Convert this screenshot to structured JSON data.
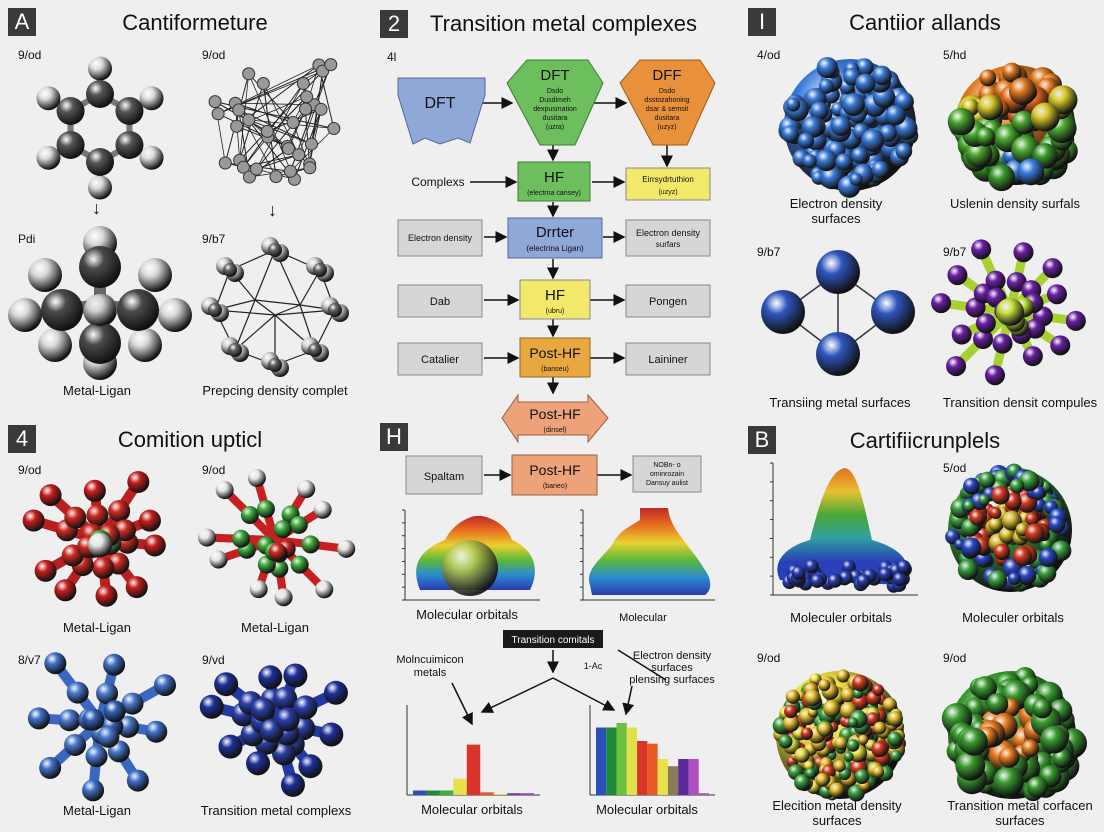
{
  "panel_a": {
    "badge": "A",
    "title": "Cantiformeture",
    "labels": [
      "9/od",
      "9/od",
      "Pdi",
      "9/b7"
    ],
    "captions": [
      "Metal-Ligan",
      "Prepcing density complet"
    ]
  },
  "panel_4": {
    "badge": "4",
    "title": "Comition upticl",
    "labels": [
      "9/od",
      "9/od",
      "8/v7",
      "9/vd"
    ],
    "captions": [
      "Metal-Ligan",
      "Metal-Ligan",
      "Metal-Ligan",
      "Transition metal complexs"
    ]
  },
  "panel_2": {
    "badge": "2",
    "title": "Transition metal complexes",
    "corner_label": "4l",
    "flow": {
      "dft_left": "DFT",
      "dft_green": {
        "title": "DFT",
        "lines": [
          "Dsdo",
          "Dusdimeh",
          "dexpusmation",
          "dusitara",
          "(uzra)"
        ]
      },
      "dff_orange": {
        "title": "DFF",
        "lines": [
          "Dsdo",
          "dsstozahoning",
          "dsar & semsit",
          "dusitara",
          "(uzyz)"
        ]
      },
      "complexs": "Complexs",
      "hf_green": {
        "title": "HF",
        "sub": "(electrna cansey)"
      },
      "yellow_box": {
        "title": "Eirrsydrtuthion",
        "sub": "(uzyz)"
      },
      "row3": {
        "left": "Electron density",
        "center_title": "Drrter",
        "center_sub": "(electrina Ligan)",
        "right": [
          "Electron density",
          "surfars"
        ]
      },
      "row4": {
        "left": "Dab",
        "center_title": "HF",
        "center_sub": "(ubru)",
        "right": "Pongen"
      },
      "row5": {
        "left": "Catalier",
        "center_title": "Post-HF",
        "center_sub": "(banseu)",
        "right": "Laininer"
      },
      "arrow_node": {
        "title": "Post-HF",
        "sub": "(dinsel)"
      }
    }
  },
  "panel_h": {
    "badge": "H",
    "row": {
      "left": "Spaltam",
      "center_title": "Post-HF",
      "center_sub": "(baneo)",
      "right": [
        "NOBn- o",
        "ominrozain",
        "Dansuy aulist"
      ]
    },
    "plot_captions": [
      "Molecular orbitals",
      "Molecular"
    ],
    "center_label": "Transition comitals",
    "annot_left": [
      "Molncuimicon",
      "metals"
    ],
    "annot_mid": "1-Ac",
    "annot_right": [
      "Electron density",
      "surfaces",
      "plensing surfaces"
    ],
    "bar_captions": [
      "Molecular orbitals",
      "Molecular orbitals"
    ]
  },
  "panel_i": {
    "badge": "I",
    "title": "Cantiior allands",
    "labels": [
      "4/od",
      "5/hd",
      "9/b7",
      "9/b7"
    ],
    "captions": [
      [
        "Electron density",
        "surfaces"
      ],
      [
        "Uslenin density surfals"
      ],
      [
        "Transiing metal surfaces"
      ],
      [
        "Transition densit compules"
      ]
    ]
  },
  "panel_b": {
    "badge": "B",
    "title": "Cartifiicrunplels",
    "labels": [
      "5/od",
      "9/od",
      "9/od"
    ],
    "captions": [
      [
        "Moleculer orbitals"
      ],
      [
        "Moleculer orbitals"
      ],
      [
        "Elecition metal density",
        "surfaces"
      ],
      [
        "Transition metal corfacen",
        "surfaces"
      ]
    ]
  },
  "colors": {
    "badge": "#3a3a3a",
    "flow_blue": "#8fa8d8",
    "flow_green": "#6dbf5e",
    "flow_orange": "#e8913a",
    "flow_yellow": "#f2e86a",
    "flow_gray": "#d6d6d6",
    "flow_salmon": "#eea27a"
  },
  "chart_data": [
    {
      "type": "bar",
      "xlabel": "Molecular orbitals",
      "values": [
        5,
        5,
        5,
        18,
        56,
        3,
        1,
        2,
        2
      ],
      "colors": [
        "#2d50b8",
        "#1f8a3a",
        "#3fae3f",
        "#e8e04a",
        "#d8342a",
        "#e85a24",
        "#e8d84a",
        "#7a3aa8",
        "#9a4ab8"
      ]
    },
    {
      "type": "bar",
      "xlabel": "Molecular orbitals",
      "values": [
        75,
        75,
        80,
        75,
        60,
        57,
        40,
        32,
        40,
        40,
        2
      ],
      "colors": [
        "#2d50b8",
        "#1f8a3a",
        "#6cc03f",
        "#e0e04a",
        "#d8342a",
        "#e85a24",
        "#e8e04a",
        "#8a7a5a",
        "#5a2a98",
        "#b050c0",
        "#b050c0"
      ]
    }
  ]
}
